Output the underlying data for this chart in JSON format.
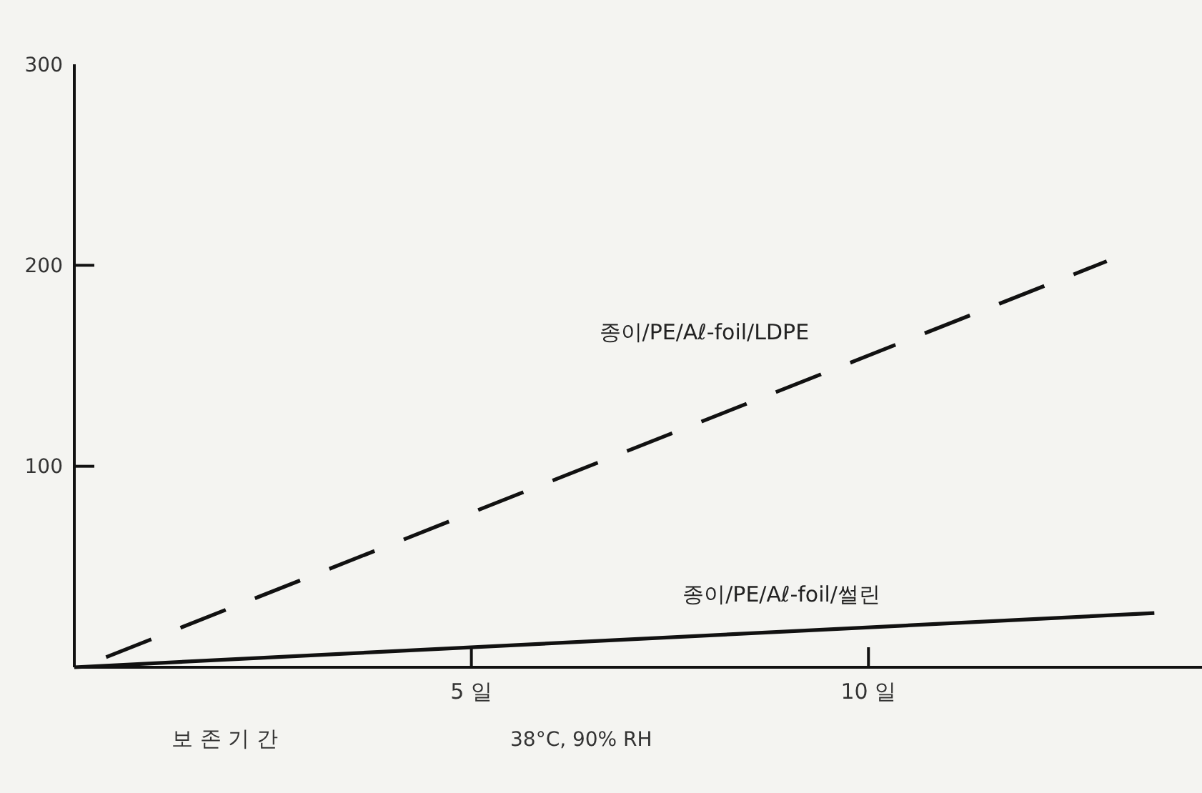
{
  "chart_data": {
    "type": "line",
    "xlabel": "보 존 기 간",
    "annotations": [
      "38°C, 90% RH"
    ],
    "xlim": [
      0,
      14.2
    ],
    "ylim": [
      0,
      300
    ],
    "xticks": [
      {
        "value": 5,
        "label": "5 일"
      },
      {
        "value": 10,
        "label": "10 일"
      }
    ],
    "yticks": [
      100,
      200,
      300
    ],
    "marker": "none",
    "series": [
      {
        "name": "종이/PE/Aℓ-foil/LDPE",
        "color": "#111111",
        "line_style": "dashed",
        "x": [
          0.4,
          13
        ],
        "values": [
          5,
          202
        ]
      },
      {
        "name": "종이/PE/Aℓ-foil/썰린",
        "color": "#111111",
        "line_style": "solid",
        "x": [
          0,
          13.6
        ],
        "values": [
          0,
          27
        ]
      }
    ]
  }
}
